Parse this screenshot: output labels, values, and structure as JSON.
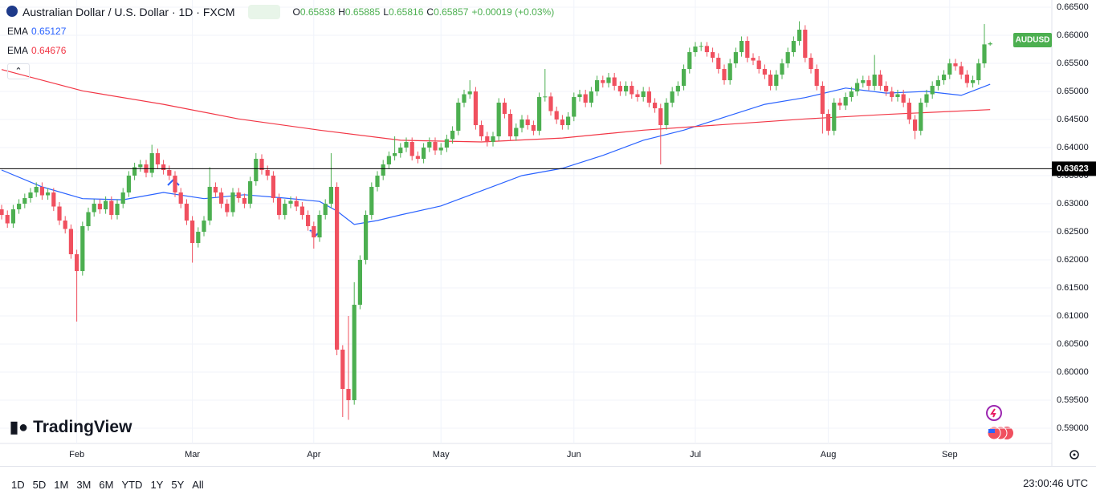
{
  "header": {
    "symbol": "Australian Dollar / U.S. Dollar · 1D · FXCM",
    "ohlc": [
      {
        "key": "O",
        "value": "0.65838"
      },
      {
        "key": "H",
        "value": "0.65885"
      },
      {
        "key": "L",
        "value": "0.65816"
      },
      {
        "key": "C",
        "value": "0.65857"
      }
    ],
    "change": "+0.00019 (+0.03%)"
  },
  "logo": "TradingView",
  "toolbar": {
    "ranges": [
      "1D",
      "5D",
      "1M",
      "3M",
      "6M",
      "YTD",
      "1Y",
      "5Y",
      "All"
    ],
    "clock": "23:00:46 UTC"
  },
  "chart_data": {
    "type": "candlestick",
    "up_color": "#4caf50",
    "down_color": "#f0505f",
    "grid": true,
    "xlim": [
      -0.28,
      181.67
    ],
    "ylim": [
      0.58729,
      0.66629
    ],
    "xticks": [
      {
        "value": 13,
        "label": "Feb"
      },
      {
        "value": 33,
        "label": "Mar"
      },
      {
        "value": 54,
        "label": "Apr"
      },
      {
        "value": 76,
        "label": "May"
      },
      {
        "value": 99,
        "label": "Jun"
      },
      {
        "value": 120,
        "label": "Jul"
      },
      {
        "value": 143,
        "label": "Aug"
      },
      {
        "value": 164,
        "label": "Sep"
      }
    ],
    "yticks": [
      {
        "value": 0.59,
        "label": "0.59000"
      },
      {
        "value": 0.595,
        "label": "0.59500"
      },
      {
        "value": 0.6,
        "label": "0.60000"
      },
      {
        "value": 0.605,
        "label": "0.60500"
      },
      {
        "value": 0.61,
        "label": "0.61000"
      },
      {
        "value": 0.615,
        "label": "0.61500"
      },
      {
        "value": 0.62,
        "label": "0.62000"
      },
      {
        "value": 0.625,
        "label": "0.62500"
      },
      {
        "value": 0.63,
        "label": "0.63000"
      },
      {
        "value": 0.635,
        "label": "0.63500"
      },
      {
        "value": 0.64,
        "label": "0.64000"
      },
      {
        "value": 0.645,
        "label": "0.64500"
      },
      {
        "value": 0.65,
        "label": "0.65000"
      },
      {
        "value": 0.655,
        "label": "0.65500"
      },
      {
        "value": 0.66,
        "label": "0.66000"
      },
      {
        "value": 0.665,
        "label": "0.66500"
      }
    ],
    "hline": {
      "value": 0.63623,
      "label": "0.63623"
    },
    "price_tag": "AUDUSD",
    "series": [
      {
        "name": "EMA",
        "value_label": "0.65127",
        "color": "#2962ff",
        "x": [
          0,
          7,
          14,
          21,
          28,
          35,
          42,
          49,
          55,
          58,
          61,
          65,
          69,
          76,
          83,
          90,
          97,
          104,
          111,
          118,
          125,
          132,
          139,
          146,
          153,
          160,
          166,
          171
        ],
        "values": [
          0.636,
          0.633,
          0.6309,
          0.6307,
          0.632,
          0.6309,
          0.6316,
          0.631,
          0.6304,
          0.6287,
          0.6263,
          0.627,
          0.628,
          0.6296,
          0.6323,
          0.635,
          0.6363,
          0.6386,
          0.6413,
          0.6431,
          0.6454,
          0.6477,
          0.6489,
          0.6506,
          0.6497,
          0.65,
          0.6493,
          0.65127
        ]
      },
      {
        "name": "EMA",
        "value_label": "0.64676",
        "color": "#f23645",
        "x": [
          0,
          14,
          28,
          41,
          55,
          69,
          83,
          97,
          111,
          125,
          139,
          153,
          171
        ],
        "values": [
          0.6539,
          0.6501,
          0.6477,
          0.6451,
          0.6431,
          0.6413,
          0.641,
          0.6417,
          0.6431,
          0.6441,
          0.6451,
          0.6459,
          0.64676
        ]
      }
    ],
    "candles": [
      [
        0.629,
        0.6298,
        0.6272,
        0.628
      ],
      [
        0.628,
        0.6288,
        0.6257,
        0.6265
      ],
      [
        0.6265,
        0.6298,
        0.6257,
        0.629
      ],
      [
        0.629,
        0.6308,
        0.6282,
        0.63
      ],
      [
        0.63,
        0.6318,
        0.6292,
        0.631
      ],
      [
        0.631,
        0.6328,
        0.6302,
        0.632
      ],
      [
        0.632,
        0.6338,
        0.6312,
        0.633
      ],
      [
        0.633,
        0.6338,
        0.6307,
        0.6315
      ],
      [
        0.6315,
        0.6328,
        0.6307,
        0.632
      ],
      [
        0.632,
        0.6328,
        0.6287,
        0.6295
      ],
      [
        0.6295,
        0.6303,
        0.6262,
        0.627
      ],
      [
        0.627,
        0.6278,
        0.6247,
        0.6255
      ],
      [
        0.6255,
        0.6263,
        0.6202,
        0.621
      ],
      [
        0.621,
        0.6218,
        0.609,
        0.618
      ],
      [
        0.618,
        0.6268,
        0.6172,
        0.626
      ],
      [
        0.626,
        0.6293,
        0.6252,
        0.6285
      ],
      [
        0.6285,
        0.6308,
        0.6277,
        0.63
      ],
      [
        0.63,
        0.6308,
        0.6282,
        0.629
      ],
      [
        0.629,
        0.6313,
        0.6282,
        0.6305
      ],
      [
        0.6305,
        0.6313,
        0.6272,
        0.628
      ],
      [
        0.628,
        0.6308,
        0.6272,
        0.63
      ],
      [
        0.63,
        0.6328,
        0.6292,
        0.632
      ],
      [
        0.632,
        0.6358,
        0.6312,
        0.635
      ],
      [
        0.635,
        0.6373,
        0.6342,
        0.6365
      ],
      [
        0.6365,
        0.6378,
        0.6357,
        0.637
      ],
      [
        0.637,
        0.6378,
        0.6347,
        0.6355
      ],
      [
        0.6355,
        0.6405,
        0.6347,
        0.639
      ],
      [
        0.639,
        0.6398,
        0.6362,
        0.637
      ],
      [
        0.637,
        0.6378,
        0.6352,
        0.636
      ],
      [
        0.636,
        0.6368,
        0.6342,
        0.635
      ],
      [
        0.635,
        0.6358,
        0.6312,
        0.632
      ],
      [
        0.632,
        0.6328,
        0.6292,
        0.63
      ],
      [
        0.63,
        0.6308,
        0.6262,
        0.627
      ],
      [
        0.627,
        0.6278,
        0.6195,
        0.623
      ],
      [
        0.623,
        0.6258,
        0.6222,
        0.625
      ],
      [
        0.625,
        0.6278,
        0.6242,
        0.627
      ],
      [
        0.627,
        0.6365,
        0.6262,
        0.633
      ],
      [
        0.633,
        0.6338,
        0.6312,
        0.632
      ],
      [
        0.632,
        0.6328,
        0.6292,
        0.63
      ],
      [
        0.63,
        0.6308,
        0.6277,
        0.6285
      ],
      [
        0.6285,
        0.6328,
        0.6277,
        0.632
      ],
      [
        0.632,
        0.6328,
        0.6302,
        0.631
      ],
      [
        0.631,
        0.6318,
        0.6292,
        0.63
      ],
      [
        0.63,
        0.6348,
        0.6292,
        0.634
      ],
      [
        0.634,
        0.639,
        0.6332,
        0.638
      ],
      [
        0.638,
        0.6388,
        0.6352,
        0.636
      ],
      [
        0.636,
        0.6368,
        0.6342,
        0.635
      ],
      [
        0.635,
        0.6358,
        0.6302,
        0.631
      ],
      [
        0.631,
        0.6318,
        0.6272,
        0.628
      ],
      [
        0.628,
        0.6308,
        0.6272,
        0.63
      ],
      [
        0.63,
        0.6313,
        0.6292,
        0.6305
      ],
      [
        0.6305,
        0.6313,
        0.6287,
        0.6295
      ],
      [
        0.6295,
        0.6303,
        0.6272,
        0.628
      ],
      [
        0.628,
        0.6288,
        0.6252,
        0.626
      ],
      [
        0.626,
        0.6268,
        0.622,
        0.624
      ],
      [
        0.624,
        0.6288,
        0.6232,
        0.628
      ],
      [
        0.628,
        0.6308,
        0.6272,
        0.63
      ],
      [
        0.63,
        0.639,
        0.6292,
        0.633
      ],
      [
        0.633,
        0.6338,
        0.603,
        0.604
      ],
      [
        0.604,
        0.6048,
        0.592,
        0.597
      ],
      [
        0.597,
        0.61,
        0.5915,
        0.595
      ],
      [
        0.595,
        0.616,
        0.5942,
        0.612
      ],
      [
        0.612,
        0.6208,
        0.6112,
        0.62
      ],
      [
        0.62,
        0.6288,
        0.6192,
        0.628
      ],
      [
        0.628,
        0.6338,
        0.6272,
        0.633
      ],
      [
        0.633,
        0.6358,
        0.6322,
        0.635
      ],
      [
        0.635,
        0.6378,
        0.6342,
        0.637
      ],
      [
        0.637,
        0.6393,
        0.6362,
        0.6385
      ],
      [
        0.6385,
        0.642,
        0.6377,
        0.639
      ],
      [
        0.639,
        0.6408,
        0.6382,
        0.64
      ],
      [
        0.64,
        0.6418,
        0.6392,
        0.641
      ],
      [
        0.641,
        0.6418,
        0.6377,
        0.6385
      ],
      [
        0.6385,
        0.6393,
        0.6372,
        0.638
      ],
      [
        0.638,
        0.6408,
        0.6372,
        0.64
      ],
      [
        0.64,
        0.6418,
        0.6392,
        0.641
      ],
      [
        0.641,
        0.6418,
        0.6387,
        0.6395
      ],
      [
        0.6395,
        0.6408,
        0.6387,
        0.64
      ],
      [
        0.64,
        0.6423,
        0.6392,
        0.6415
      ],
      [
        0.6415,
        0.6438,
        0.6407,
        0.643
      ],
      [
        0.643,
        0.6488,
        0.6422,
        0.648
      ],
      [
        0.648,
        0.6503,
        0.6472,
        0.6495
      ],
      [
        0.6495,
        0.652,
        0.6487,
        0.65
      ],
      [
        0.65,
        0.6508,
        0.6432,
        0.644
      ],
      [
        0.644,
        0.6448,
        0.6412,
        0.642
      ],
      [
        0.642,
        0.6428,
        0.6402,
        0.641
      ],
      [
        0.641,
        0.6428,
        0.6402,
        0.642
      ],
      [
        0.642,
        0.6488,
        0.6412,
        0.648
      ],
      [
        0.648,
        0.6488,
        0.6452,
        0.646
      ],
      [
        0.646,
        0.6468,
        0.6412,
        0.642
      ],
      [
        0.642,
        0.6443,
        0.6412,
        0.6435
      ],
      [
        0.6435,
        0.6458,
        0.6427,
        0.645
      ],
      [
        0.645,
        0.6458,
        0.6432,
        0.644
      ],
      [
        0.644,
        0.6448,
        0.6422,
        0.643
      ],
      [
        0.643,
        0.6498,
        0.6422,
        0.649
      ],
      [
        0.649,
        0.654,
        0.6482,
        0.6491
      ],
      [
        0.6491,
        0.6498,
        0.6457,
        0.6465
      ],
      [
        0.6465,
        0.6473,
        0.6442,
        0.645
      ],
      [
        0.645,
        0.6458,
        0.6432,
        0.644
      ],
      [
        0.644,
        0.6463,
        0.6432,
        0.6455
      ],
      [
        0.6455,
        0.6498,
        0.6447,
        0.649
      ],
      [
        0.649,
        0.6503,
        0.6482,
        0.6495
      ],
      [
        0.6495,
        0.6503,
        0.6472,
        0.648
      ],
      [
        0.648,
        0.6508,
        0.6472,
        0.65
      ],
      [
        0.65,
        0.6528,
        0.6492,
        0.652
      ],
      [
        0.652,
        0.6528,
        0.6507,
        0.6515
      ],
      [
        0.6515,
        0.6533,
        0.6507,
        0.6525
      ],
      [
        0.6525,
        0.6533,
        0.6502,
        0.651
      ],
      [
        0.651,
        0.6518,
        0.6492,
        0.65
      ],
      [
        0.65,
        0.6518,
        0.6492,
        0.651
      ],
      [
        0.651,
        0.6518,
        0.6487,
        0.6495
      ],
      [
        0.6495,
        0.6503,
        0.6482,
        0.649
      ],
      [
        0.649,
        0.6508,
        0.6482,
        0.65
      ],
      [
        0.65,
        0.6508,
        0.6472,
        0.648
      ],
      [
        0.648,
        0.6488,
        0.6462,
        0.647
      ],
      [
        0.647,
        0.6478,
        0.637,
        0.644
      ],
      [
        0.644,
        0.6488,
        0.6432,
        0.648
      ],
      [
        0.648,
        0.6508,
        0.6472,
        0.65
      ],
      [
        0.65,
        0.6518,
        0.6492,
        0.651
      ],
      [
        0.651,
        0.6548,
        0.6502,
        0.654
      ],
      [
        0.654,
        0.6578,
        0.6532,
        0.657
      ],
      [
        0.657,
        0.6588,
        0.6562,
        0.658
      ],
      [
        0.658,
        0.6588,
        0.6572,
        0.6581
      ],
      [
        0.6581,
        0.6588,
        0.6562,
        0.657
      ],
      [
        0.657,
        0.6578,
        0.6552,
        0.656
      ],
      [
        0.656,
        0.6568,
        0.6532,
        0.654
      ],
      [
        0.654,
        0.6548,
        0.6512,
        0.652
      ],
      [
        0.652,
        0.6558,
        0.6512,
        0.655
      ],
      [
        0.655,
        0.6578,
        0.6542,
        0.657
      ],
      [
        0.657,
        0.6598,
        0.6562,
        0.659
      ],
      [
        0.659,
        0.6598,
        0.6552,
        0.656
      ],
      [
        0.656,
        0.6568,
        0.6547,
        0.6555
      ],
      [
        0.6555,
        0.6563,
        0.6532,
        0.654
      ],
      [
        0.654,
        0.6548,
        0.6522,
        0.653
      ],
      [
        0.653,
        0.6538,
        0.6502,
        0.651
      ],
      [
        0.651,
        0.6538,
        0.6502,
        0.653
      ],
      [
        0.653,
        0.6558,
        0.6522,
        0.655
      ],
      [
        0.655,
        0.6578,
        0.6542,
        0.657
      ],
      [
        0.657,
        0.6598,
        0.6562,
        0.659
      ],
      [
        0.659,
        0.6625,
        0.6582,
        0.661
      ],
      [
        0.661,
        0.6618,
        0.6552,
        0.656
      ],
      [
        0.656,
        0.6568,
        0.6532,
        0.654
      ],
      [
        0.654,
        0.6548,
        0.6502,
        0.651
      ],
      [
        0.651,
        0.6518,
        0.6425,
        0.646
      ],
      [
        0.646,
        0.6468,
        0.6422,
        0.643
      ],
      [
        0.643,
        0.6488,
        0.6422,
        0.648
      ],
      [
        0.648,
        0.6488,
        0.6467,
        0.6475
      ],
      [
        0.6475,
        0.6498,
        0.6467,
        0.649
      ],
      [
        0.649,
        0.6508,
        0.6482,
        0.65
      ],
      [
        0.65,
        0.6523,
        0.6492,
        0.6515
      ],
      [
        0.6515,
        0.6528,
        0.6507,
        0.652
      ],
      [
        0.652,
        0.6528,
        0.6502,
        0.651
      ],
      [
        0.651,
        0.6565,
        0.6502,
        0.653
      ],
      [
        0.653,
        0.6538,
        0.6502,
        0.651
      ],
      [
        0.651,
        0.6518,
        0.6492,
        0.65
      ],
      [
        0.65,
        0.6508,
        0.6482,
        0.649
      ],
      [
        0.649,
        0.6503,
        0.6482,
        0.6495
      ],
      [
        0.6495,
        0.6503,
        0.6472,
        0.648
      ],
      [
        0.648,
        0.6488,
        0.6442,
        0.645
      ],
      [
        0.645,
        0.6458,
        0.6415,
        0.643
      ],
      [
        0.643,
        0.6488,
        0.6422,
        0.648
      ],
      [
        0.648,
        0.6503,
        0.6472,
        0.6495
      ],
      [
        0.6495,
        0.6518,
        0.6487,
        0.651
      ],
      [
        0.651,
        0.6528,
        0.6502,
        0.652
      ],
      [
        0.652,
        0.6538,
        0.6512,
        0.653
      ],
      [
        0.653,
        0.6558,
        0.6522,
        0.655
      ],
      [
        0.655,
        0.6558,
        0.6537,
        0.6545
      ],
      [
        0.6545,
        0.6553,
        0.6522,
        0.653
      ],
      [
        0.653,
        0.6538,
        0.6507,
        0.6515
      ],
      [
        0.6515,
        0.6528,
        0.6507,
        0.652
      ],
      [
        0.652,
        0.6558,
        0.6512,
        0.655
      ],
      [
        0.655,
        0.662,
        0.6542,
        0.65838
      ],
      [
        0.65838,
        0.65885,
        0.65816,
        0.65857
      ]
    ]
  }
}
